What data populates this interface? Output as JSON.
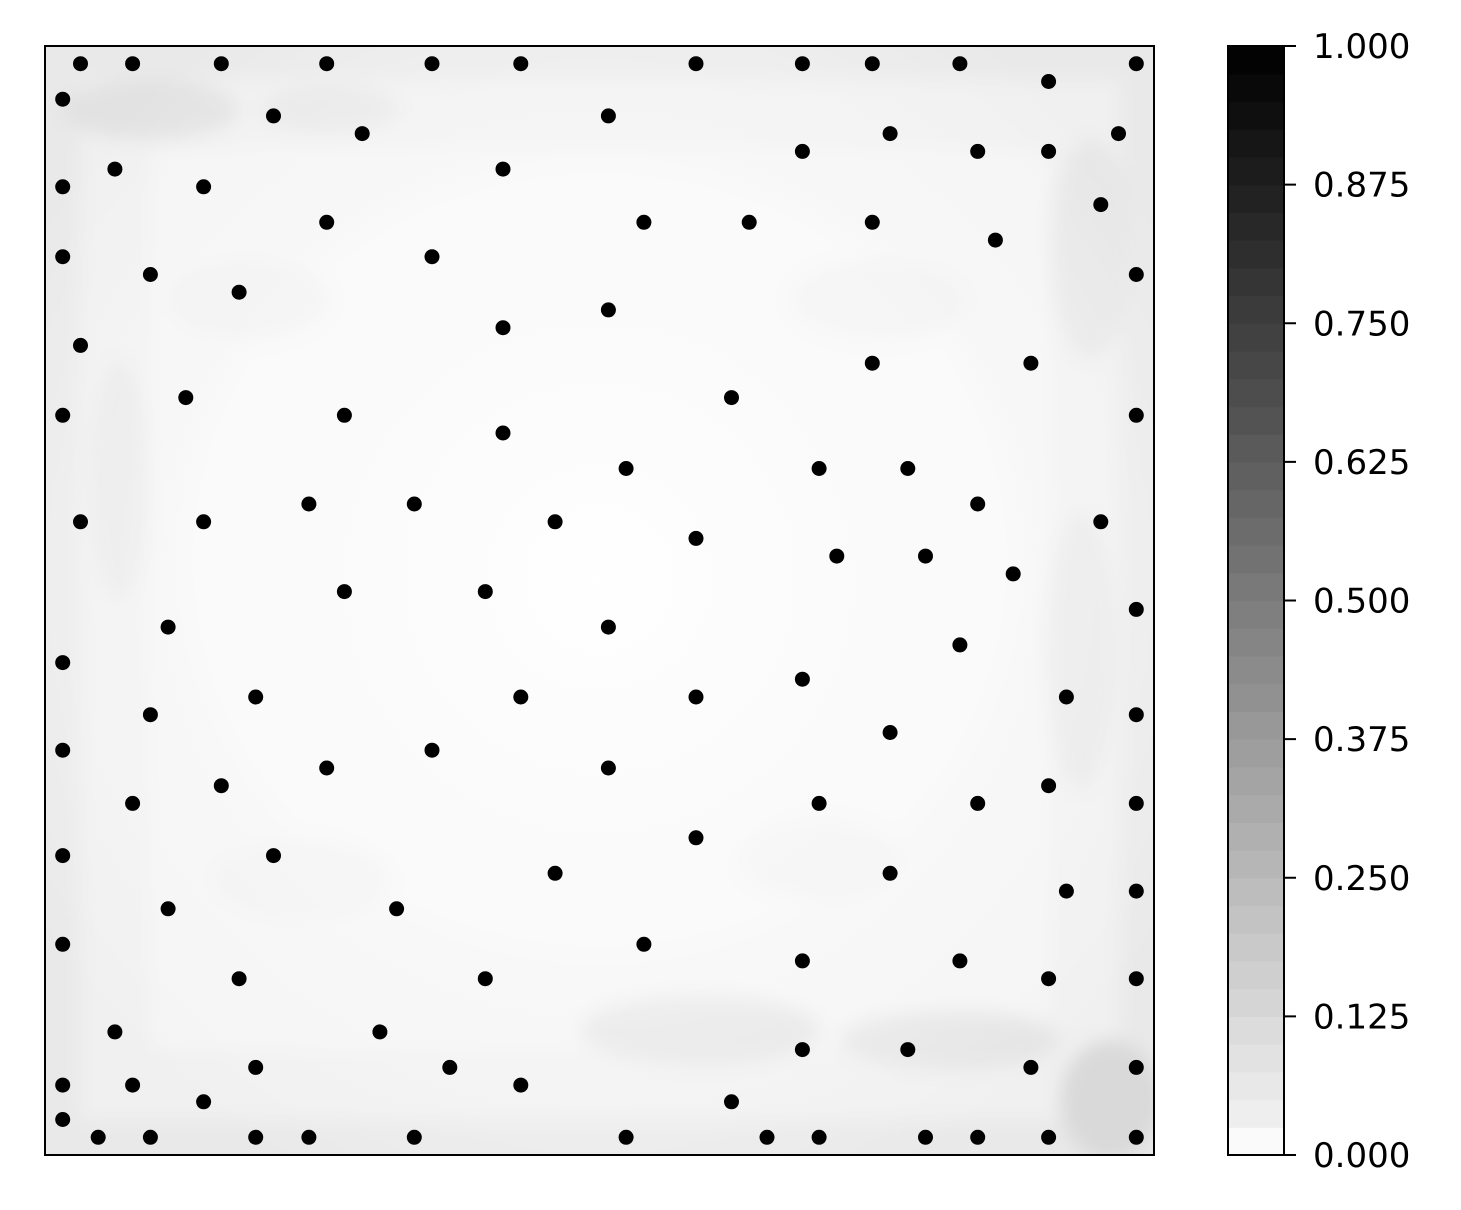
{
  "chart_data": {
    "type": "scatter",
    "title": "",
    "xlabel": "",
    "ylabel": "",
    "xlim": [
      0,
      1
    ],
    "ylim": [
      0,
      1
    ],
    "x_ticks_shown": false,
    "y_ticks_shown": false,
    "grid": false,
    "background": "grayscale density field (light gray, darker near edges, near-white centre)",
    "marker_color": "#000000",
    "colorbar": {
      "colormap": "Greys",
      "vmin": 0.0,
      "vmax": 1.0,
      "ticks": [
        "0.000",
        "0.125",
        "0.250",
        "0.375",
        "0.500",
        "0.625",
        "0.750",
        "0.875",
        "1.000"
      ]
    },
    "points": [
      [
        0.032,
        0.984
      ],
      [
        0.079,
        0.984
      ],
      [
        0.159,
        0.984
      ],
      [
        0.254,
        0.984
      ],
      [
        0.349,
        0.984
      ],
      [
        0.429,
        0.984
      ],
      [
        0.587,
        0.984
      ],
      [
        0.683,
        0.984
      ],
      [
        0.746,
        0.984
      ],
      [
        0.825,
        0.984
      ],
      [
        0.984,
        0.984
      ],
      [
        0.905,
        0.968
      ],
      [
        0.016,
        0.952
      ],
      [
        0.206,
        0.937
      ],
      [
        0.508,
        0.937
      ],
      [
        0.286,
        0.921
      ],
      [
        0.762,
        0.921
      ],
      [
        0.968,
        0.921
      ],
      [
        0.683,
        0.905
      ],
      [
        0.841,
        0.905
      ],
      [
        0.905,
        0.905
      ],
      [
        0.063,
        0.889
      ],
      [
        0.413,
        0.889
      ],
      [
        0.016,
        0.873
      ],
      [
        0.143,
        0.873
      ],
      [
        0.952,
        0.857
      ],
      [
        0.254,
        0.841
      ],
      [
        0.54,
        0.841
      ],
      [
        0.635,
        0.841
      ],
      [
        0.746,
        0.841
      ],
      [
        0.857,
        0.825
      ],
      [
        0.016,
        0.81
      ],
      [
        0.349,
        0.81
      ],
      [
        0.095,
        0.794
      ],
      [
        0.984,
        0.794
      ],
      [
        0.175,
        0.778
      ],
      [
        0.508,
        0.762
      ],
      [
        0.413,
        0.746
      ],
      [
        0.032,
        0.73
      ],
      [
        0.746,
        0.714
      ],
      [
        0.889,
        0.714
      ],
      [
        0.127,
        0.683
      ],
      [
        0.619,
        0.683
      ],
      [
        0.016,
        0.667
      ],
      [
        0.27,
        0.667
      ],
      [
        0.984,
        0.667
      ],
      [
        0.413,
        0.651
      ],
      [
        0.524,
        0.619
      ],
      [
        0.698,
        0.619
      ],
      [
        0.778,
        0.619
      ],
      [
        0.841,
        0.587
      ],
      [
        0.238,
        0.587
      ],
      [
        0.333,
        0.587
      ],
      [
        0.032,
        0.571
      ],
      [
        0.143,
        0.571
      ],
      [
        0.46,
        0.571
      ],
      [
        0.952,
        0.571
      ],
      [
        0.587,
        0.556
      ],
      [
        0.714,
        0.54
      ],
      [
        0.794,
        0.54
      ],
      [
        0.873,
        0.524
      ],
      [
        0.27,
        0.508
      ],
      [
        0.397,
        0.508
      ],
      [
        0.984,
        0.492
      ],
      [
        0.111,
        0.476
      ],
      [
        0.508,
        0.476
      ],
      [
        0.825,
        0.46
      ],
      [
        0.016,
        0.444
      ],
      [
        0.683,
        0.429
      ],
      [
        0.19,
        0.413
      ],
      [
        0.429,
        0.413
      ],
      [
        0.587,
        0.413
      ],
      [
        0.921,
        0.413
      ],
      [
        0.095,
        0.397
      ],
      [
        0.984,
        0.397
      ],
      [
        0.762,
        0.381
      ],
      [
        0.016,
        0.365
      ],
      [
        0.349,
        0.365
      ],
      [
        0.254,
        0.349
      ],
      [
        0.508,
        0.349
      ],
      [
        0.159,
        0.333
      ],
      [
        0.905,
        0.333
      ],
      [
        0.079,
        0.317
      ],
      [
        0.698,
        0.317
      ],
      [
        0.841,
        0.317
      ],
      [
        0.984,
        0.317
      ],
      [
        0.587,
        0.286
      ],
      [
        0.016,
        0.27
      ],
      [
        0.206,
        0.27
      ],
      [
        0.46,
        0.254
      ],
      [
        0.762,
        0.254
      ],
      [
        0.921,
        0.238
      ],
      [
        0.984,
        0.238
      ],
      [
        0.111,
        0.222
      ],
      [
        0.317,
        0.222
      ],
      [
        0.016,
        0.19
      ],
      [
        0.54,
        0.19
      ],
      [
        0.683,
        0.175
      ],
      [
        0.825,
        0.175
      ],
      [
        0.175,
        0.159
      ],
      [
        0.397,
        0.159
      ],
      [
        0.905,
        0.159
      ],
      [
        0.984,
        0.159
      ],
      [
        0.063,
        0.111
      ],
      [
        0.302,
        0.111
      ],
      [
        0.683,
        0.095
      ],
      [
        0.778,
        0.095
      ],
      [
        0.19,
        0.079
      ],
      [
        0.365,
        0.079
      ],
      [
        0.889,
        0.079
      ],
      [
        0.984,
        0.079
      ],
      [
        0.016,
        0.063
      ],
      [
        0.079,
        0.063
      ],
      [
        0.429,
        0.063
      ],
      [
        0.143,
        0.048
      ],
      [
        0.619,
        0.048
      ],
      [
        0.016,
        0.032
      ],
      [
        0.048,
        0.016
      ],
      [
        0.095,
        0.016
      ],
      [
        0.19,
        0.016
      ],
      [
        0.238,
        0.016
      ],
      [
        0.333,
        0.016
      ],
      [
        0.524,
        0.016
      ],
      [
        0.651,
        0.016
      ],
      [
        0.698,
        0.016
      ],
      [
        0.794,
        0.016
      ],
      [
        0.841,
        0.016
      ],
      [
        0.905,
        0.016
      ],
      [
        0.984,
        0.016
      ]
    ]
  }
}
